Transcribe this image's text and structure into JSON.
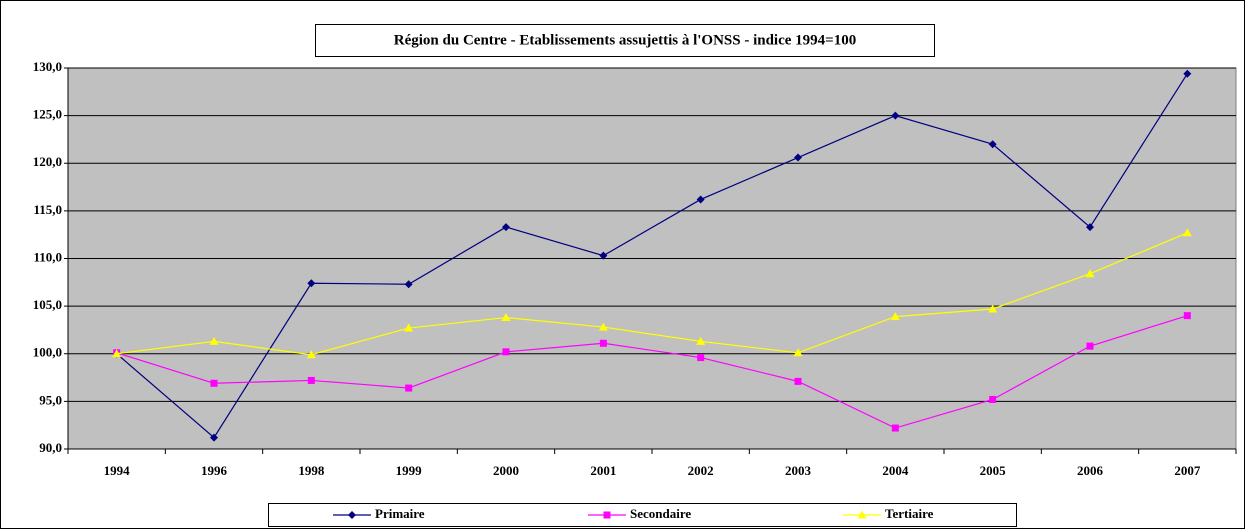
{
  "chart_data": {
    "type": "line",
    "title": "Région du Centre - Etablissements assujettis à l'ONSS - indice 1994=100",
    "categories": [
      "1994",
      "1996",
      "1998",
      "1999",
      "2000",
      "2001",
      "2002",
      "2003",
      "2004",
      "2005",
      "2006",
      "2007"
    ],
    "series": [
      {
        "name": "Primaire",
        "color": "#000080",
        "marker": "diamond",
        "values": [
          100.0,
          91.2,
          107.4,
          107.3,
          113.3,
          110.3,
          116.2,
          120.6,
          125.0,
          122.0,
          113.3,
          129.4
        ]
      },
      {
        "name": "Secondaire",
        "color": "#ff00ff",
        "marker": "square",
        "values": [
          100.1,
          96.9,
          97.2,
          96.4,
          100.2,
          101.1,
          99.6,
          97.1,
          92.2,
          95.2,
          100.8,
          104.0
        ]
      },
      {
        "name": "Tertiaire",
        "color": "#ffff00",
        "marker": "triangle",
        "values": [
          100.0,
          101.3,
          99.9,
          102.7,
          103.8,
          102.8,
          101.3,
          100.1,
          103.9,
          104.7,
          108.4,
          112.7
        ]
      }
    ],
    "ylim": [
      90,
      130
    ],
    "yticks": [
      {
        "value": 90,
        "label": "90,0"
      },
      {
        "value": 95,
        "label": "95,0"
      },
      {
        "value": 100,
        "label": "100,0"
      },
      {
        "value": 105,
        "label": "105,0"
      },
      {
        "value": 110,
        "label": "110,0"
      },
      {
        "value": 115,
        "label": "115,0"
      },
      {
        "value": 120,
        "label": "120,0"
      },
      {
        "value": 125,
        "label": "125,0"
      },
      {
        "value": 130,
        "label": "130,0"
      }
    ],
    "grid": true,
    "plot_background": "#c0c0c0",
    "legend": "bottom"
  }
}
